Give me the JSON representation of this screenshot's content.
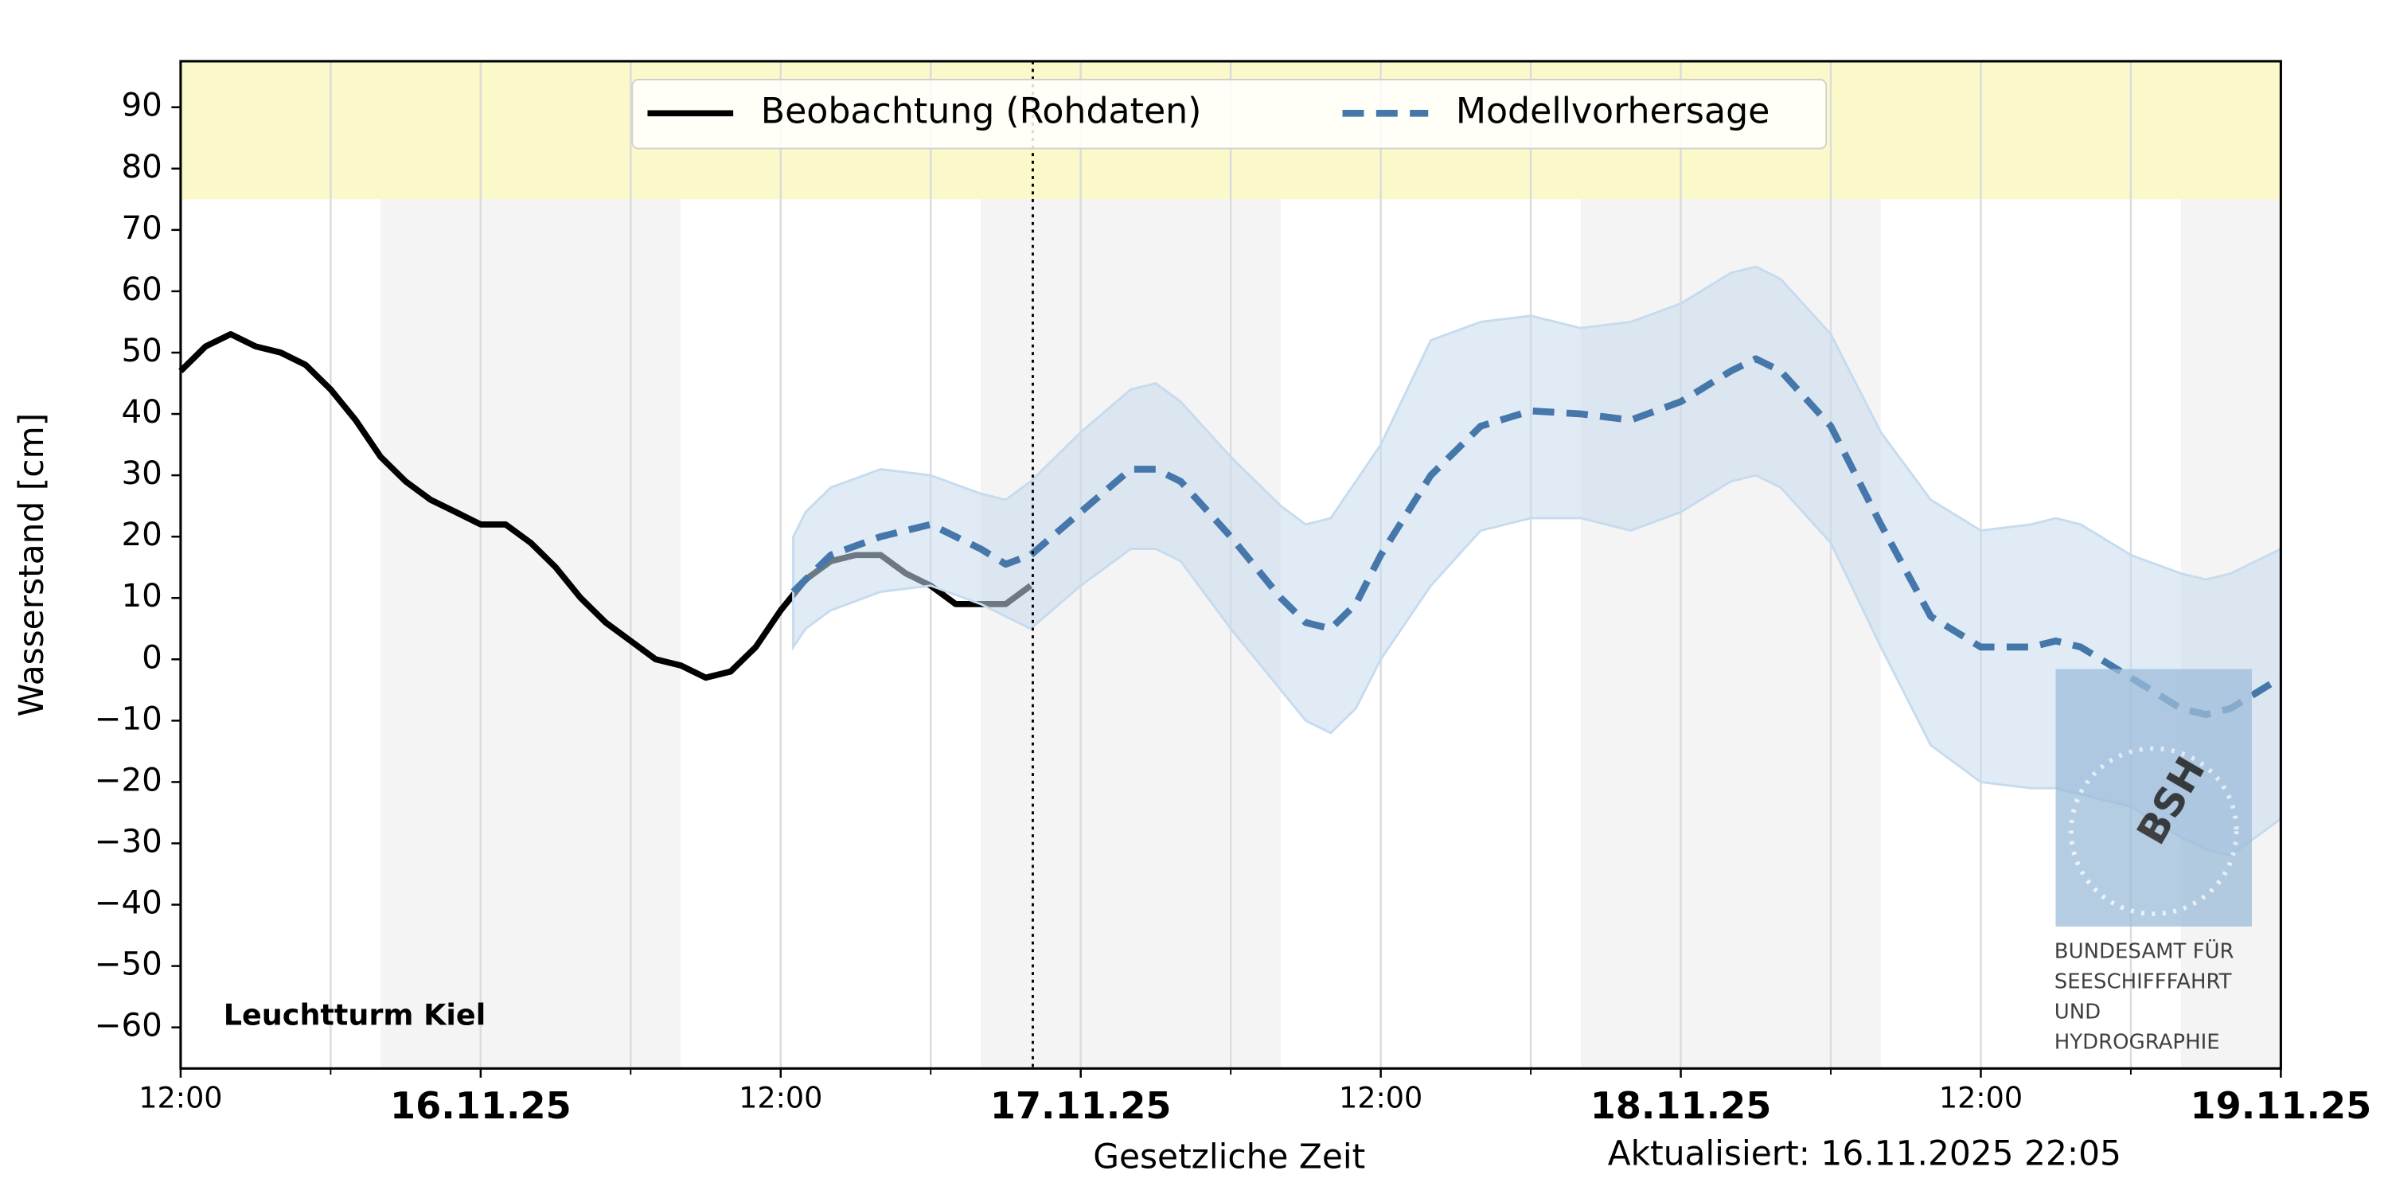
{
  "chart_data": {
    "type": "line",
    "station": "Leuchtturm Kiel",
    "y_label": "Wasserstand [cm]",
    "x_label": "Gesetzliche Zeit",
    "updated": "Aktualisiert: 16.11.2025 22:05",
    "now": "2025-11-16T22:05",
    "legend": "upper center",
    "grid": true,
    "xlim": [
      "2025-11-15T12:00",
      "2025-11-19T00:00"
    ],
    "ylim": [
      -66.7,
      97.5
    ],
    "xticks": [
      {
        "value": "2025-11-15T12:00",
        "label": "12:00"
      },
      {
        "value": "2025-11-16T00:00",
        "label": "16.11.25"
      },
      {
        "value": "2025-11-16T12:00",
        "label": "12:00"
      },
      {
        "value": "2025-11-17T00:00",
        "label": "17.11.25"
      },
      {
        "value": "2025-11-17T12:00",
        "label": "12:00"
      },
      {
        "value": "2025-11-18T00:00",
        "label": "18.11.25"
      },
      {
        "value": "2025-11-18T12:00",
        "label": "12:00"
      },
      {
        "value": "2025-11-19T00:00",
        "label": "19.11.25"
      }
    ],
    "xminorticks": [
      "2025-11-15T18:00",
      "2025-11-16T06:00",
      "2025-11-16T18:00",
      "2025-11-17T06:00",
      "2025-11-17T18:00",
      "2025-11-18T06:00",
      "2025-11-18T18:00"
    ],
    "yticks": [
      {
        "value": -60,
        "label": "−60"
      },
      {
        "value": -50,
        "label": "−50"
      },
      {
        "value": -40,
        "label": "−40"
      },
      {
        "value": -30,
        "label": "−30"
      },
      {
        "value": -20,
        "label": "−20"
      },
      {
        "value": -10,
        "label": "−10"
      },
      0,
      10,
      20,
      30,
      40,
      50,
      60,
      70,
      80,
      90
    ],
    "highlight_ylim": [
      75,
      97.5
    ],
    "highlight_color": "#fbf9c9",
    "night_bands": [
      [
        "2025-11-15T20:00",
        "2025-11-16T08:00"
      ],
      [
        "2025-11-16T20:00",
        "2025-11-17T08:00"
      ],
      [
        "2025-11-17T20:00",
        "2025-11-18T08:00"
      ],
      [
        "2025-11-18T20:00",
        "2025-11-19T00:00"
      ]
    ],
    "night_color": "#f4f4f4",
    "series": [
      {
        "name": "Beobachtung (Rohdaten)",
        "color": "#000000",
        "dashed": false,
        "x": [
          "2025-11-15T12:00",
          "2025-11-15T13:00",
          "2025-11-15T14:00",
          "2025-11-15T15:00",
          "2025-11-15T16:00",
          "2025-11-15T17:00",
          "2025-11-15T18:00",
          "2025-11-15T19:00",
          "2025-11-15T20:00",
          "2025-11-15T21:00",
          "2025-11-15T22:00",
          "2025-11-15T23:00",
          "2025-11-16T00:00",
          "2025-11-16T01:00",
          "2025-11-16T02:00",
          "2025-11-16T03:00",
          "2025-11-16T04:00",
          "2025-11-16T05:00",
          "2025-11-16T06:00",
          "2025-11-16T07:00",
          "2025-11-16T08:00",
          "2025-11-16T09:00",
          "2025-11-16T10:00",
          "2025-11-16T11:00",
          "2025-11-16T12:00",
          "2025-11-16T13:00",
          "2025-11-16T14:00",
          "2025-11-16T15:00",
          "2025-11-16T16:00",
          "2025-11-16T17:00",
          "2025-11-16T18:00",
          "2025-11-16T19:00",
          "2025-11-16T20:00",
          "2025-11-16T21:00",
          "2025-11-16T22:00"
        ],
        "values": [
          47,
          51,
          53,
          51,
          50,
          48,
          44,
          39,
          33,
          29,
          26,
          24,
          22,
          22,
          19,
          15,
          10,
          6,
          3,
          0,
          -1,
          -3,
          -2,
          2,
          8,
          13,
          16,
          17,
          17,
          14,
          12,
          9,
          9,
          9,
          12
        ]
      },
      {
        "name": "Modellvorhersage",
        "color": "#4677aa",
        "dashed": true,
        "band_color": "#c6dbee",
        "x": [
          "2025-11-16T12:30",
          "2025-11-16T13:00",
          "2025-11-16T14:00",
          "2025-11-16T16:00",
          "2025-11-16T18:00",
          "2025-11-16T20:00",
          "2025-11-16T21:00",
          "2025-11-16T22:00",
          "2025-11-17T00:00",
          "2025-11-17T02:00",
          "2025-11-17T03:00",
          "2025-11-17T04:00",
          "2025-11-17T06:00",
          "2025-11-17T08:00",
          "2025-11-17T09:00",
          "2025-11-17T10:00",
          "2025-11-17T11:00",
          "2025-11-17T12:00",
          "2025-11-17T14:00",
          "2025-11-17T16:00",
          "2025-11-17T18:00",
          "2025-11-17T20:00",
          "2025-11-17T22:00",
          "2025-11-18T00:00",
          "2025-11-18T02:00",
          "2025-11-18T03:00",
          "2025-11-18T04:00",
          "2025-11-18T06:00",
          "2025-11-18T08:00",
          "2025-11-18T10:00",
          "2025-11-18T12:00",
          "2025-11-18T14:00",
          "2025-11-18T15:00",
          "2025-11-18T16:00",
          "2025-11-18T18:00",
          "2025-11-18T20:00",
          "2025-11-18T21:00",
          "2025-11-18T22:00",
          "2025-11-19T00:00"
        ],
        "values": [
          11,
          13,
          17,
          20,
          22,
          18,
          15.5,
          17,
          24,
          31,
          31,
          29,
          20,
          10,
          6,
          5,
          9,
          17,
          30,
          38,
          40.5,
          40,
          39,
          42,
          47,
          49,
          47,
          38,
          22,
          7,
          2,
          2,
          3,
          2,
          -3,
          -8,
          -9,
          -8,
          -3
        ],
        "upper": [
          20,
          24,
          28,
          31,
          30,
          27,
          26,
          29,
          37,
          44,
          45,
          42,
          33,
          25,
          22,
          23,
          29,
          35,
          52,
          55,
          56,
          54,
          55,
          58,
          63,
          64,
          62,
          53,
          37,
          26,
          21,
          22,
          23,
          22,
          17,
          14,
          13,
          14,
          18
        ],
        "lower": [
          2,
          5,
          8,
          11,
          12,
          9,
          7,
          5,
          12,
          18,
          18,
          16,
          5,
          -5,
          -10,
          -12,
          -8,
          0,
          12,
          21,
          23,
          23,
          21,
          24,
          29,
          30,
          28,
          19,
          2,
          -14,
          -20,
          -21,
          -21,
          -22,
          -24,
          -29,
          -31,
          -32,
          -26
        ]
      }
    ],
    "watermark": {
      "logo": "BSH",
      "lines": [
        "BUNDESAMT FÜR",
        "SEESCHIFFFAHRT",
        "UND",
        "HYDROGRAPHIE"
      ]
    }
  }
}
